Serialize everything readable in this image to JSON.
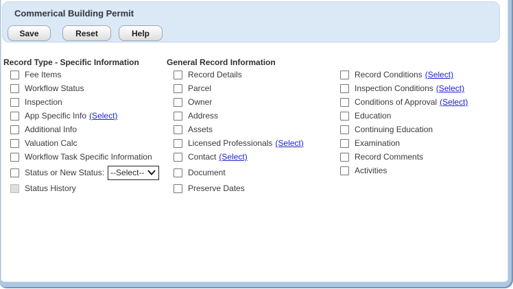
{
  "window": {
    "title": "Commerical Building Permit"
  },
  "toolbar": {
    "buttons": [
      {
        "label": "Save"
      },
      {
        "label": "Reset"
      },
      {
        "label": "Help"
      }
    ]
  },
  "columns": [
    {
      "header": "Record Type - Specific Information",
      "items": [
        {
          "label": "Fee Items"
        },
        {
          "label": "Workflow Status"
        },
        {
          "label": "Inspection"
        },
        {
          "label": "App Specific Info",
          "link": "(Select)"
        },
        {
          "label": "Additional Info"
        },
        {
          "label": "Valuation Calc"
        },
        {
          "label": "Workflow Task Specific Information"
        },
        {
          "label": "Status or New Status:",
          "dropdown": "--Select--"
        },
        {
          "label": "Status History",
          "disabled": true
        }
      ]
    },
    {
      "header": "General Record Information",
      "items": [
        {
          "label": "Record Details"
        },
        {
          "label": "Parcel"
        },
        {
          "label": "Owner"
        },
        {
          "label": "Address"
        },
        {
          "label": "Assets"
        },
        {
          "label": "Licensed Professionals",
          "link": "(Select)"
        },
        {
          "label": "Contact",
          "link": "(Select)"
        },
        {
          "label": "Document"
        },
        {
          "label": "Preserve Dates"
        }
      ]
    },
    {
      "header": "",
      "items": [
        {
          "label": "Record Conditions",
          "link": "(Select)"
        },
        {
          "label": "Inspection Conditions",
          "link": "(Select)"
        },
        {
          "label": "Conditions of Approval",
          "link": "(Select)"
        },
        {
          "label": "Education"
        },
        {
          "label": "Continuing Education"
        },
        {
          "label": "Examination"
        },
        {
          "label": "Record Comments"
        },
        {
          "label": "Activities"
        }
      ]
    }
  ],
  "colors": {
    "header_panel_bg": "#dbe8f6",
    "frame_border": "#abc7e3",
    "frame_shadow": "#7c94b0",
    "link": "#2020cf",
    "label_text": "#3a3a3a"
  }
}
